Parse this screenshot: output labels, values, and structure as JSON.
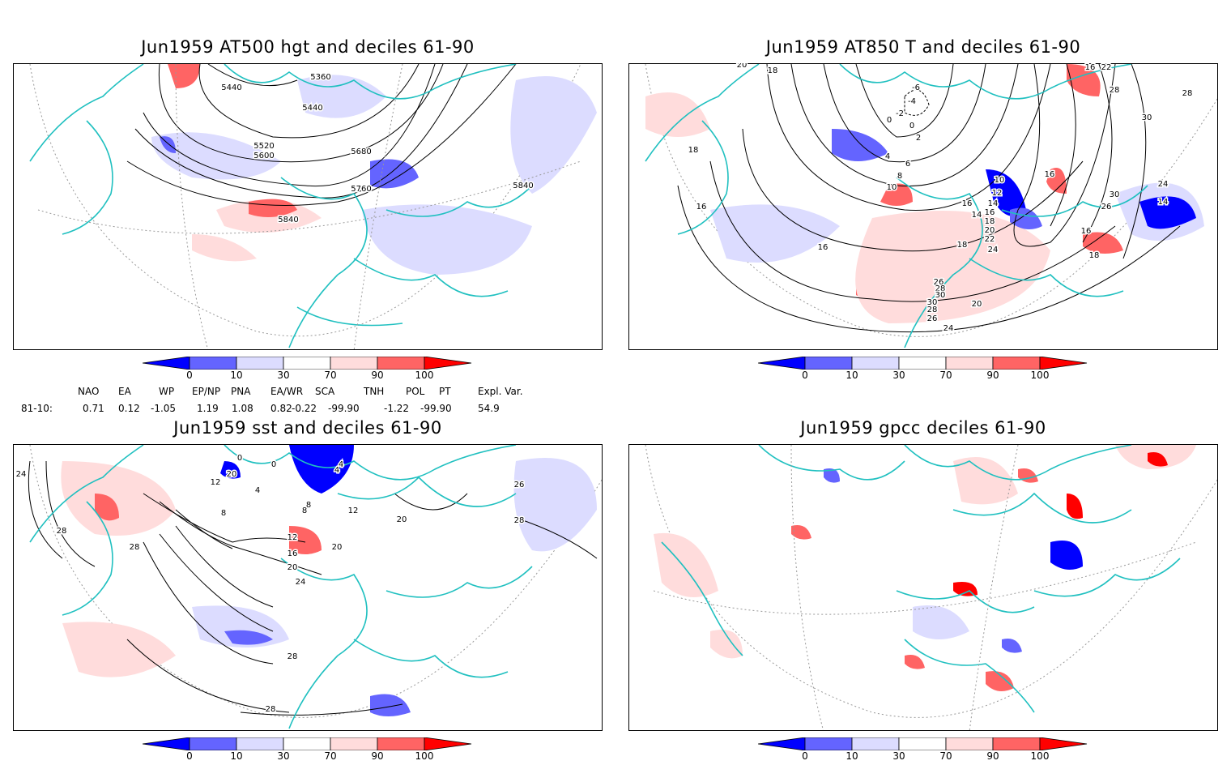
{
  "panels": {
    "p1": {
      "title": "Jun1959 AT500 hgt and deciles 61-90",
      "contour_labels": [
        "5360",
        "5440",
        "5440",
        "5520",
        "5600",
        "5680",
        "5760",
        "5840",
        "5840"
      ]
    },
    "p2": {
      "title": "Jun1959 AT850 T and deciles 61-90",
      "contour_labels": [
        "20",
        "18",
        "18",
        "16",
        "16",
        "-6",
        "-4",
        "-2",
        "0",
        "0",
        "2",
        "4",
        "6",
        "8",
        "10",
        "10",
        "12",
        "14",
        "16",
        "18",
        "20",
        "22",
        "24",
        "26",
        "28",
        "30",
        "30",
        "28",
        "26",
        "24",
        "20",
        "18",
        "16",
        "14",
        "16",
        "18",
        "14",
        "16",
        "22",
        "28",
        "30",
        "30",
        "26",
        "24",
        "16",
        "28",
        "16"
      ]
    },
    "p3": {
      "title": "Jun1959 sst and deciles 61-90",
      "contour_labels": [
        "24",
        "28",
        "28",
        "12",
        "8",
        "4",
        "0",
        "0",
        "20",
        "8",
        "12",
        "16",
        "20",
        "24",
        "28",
        "28",
        "4",
        "8",
        "12",
        "20",
        "20",
        "26",
        "28",
        "4"
      ]
    },
    "p4": {
      "title": "Jun1959 gpcc deciles 61-90"
    }
  },
  "colorbar": {
    "ticks": [
      "0",
      "10",
      "30",
      "70",
      "90",
      "100"
    ],
    "colors": [
      "#0000ff",
      "#6464ff",
      "#dcdcff",
      "#ffffff",
      "#ffdcdc",
      "#ff6464",
      "#ff0000"
    ]
  },
  "indices": {
    "headers": [
      "NAO",
      "EA",
      "WP",
      "EP/NP",
      "PNA",
      "EA/WR",
      "SCA",
      "TNH",
      "POL",
      "PT",
      "Expl. Var."
    ],
    "row_label": "81-10:",
    "values": [
      "0.71",
      "0.12",
      "-1.05",
      "1.19",
      "1.08",
      "0.82",
      "-0.22",
      "-99.90",
      "-1.22",
      "-99.90",
      "54.9"
    ]
  },
  "colors": {
    "coast": "#20c0c0",
    "contour": "#000000",
    "grid": "#888888"
  }
}
